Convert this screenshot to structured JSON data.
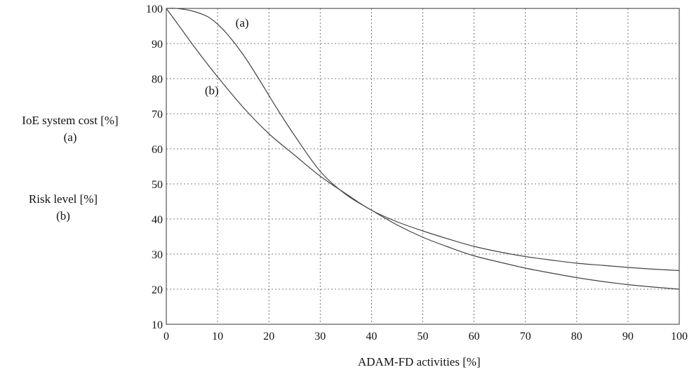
{
  "chart_data": {
    "type": "line",
    "title": "",
    "xlabel": "ADAM-FD  activities [%]",
    "ylabel_lines": [
      [
        "IoE  system cost [%]",
        "(a)"
      ],
      [
        "Risk  level [%]",
        "(b)"
      ]
    ],
    "xlim": [
      0,
      100
    ],
    "ylim": [
      10,
      100
    ],
    "xticks": [
      0,
      10,
      20,
      30,
      40,
      50,
      60,
      70,
      80,
      90,
      100
    ],
    "yticks": [
      10,
      20,
      30,
      40,
      50,
      60,
      70,
      80,
      90,
      100
    ],
    "grid": true,
    "series": [
      {
        "name": "(a)",
        "x": [
          0,
          2,
          5,
          8,
          10,
          12,
          15,
          18,
          20,
          22,
          25,
          30,
          35,
          40,
          45,
          50,
          55,
          60,
          65,
          70,
          75,
          80,
          85,
          90,
          95,
          100
        ],
        "y": [
          100,
          100,
          99.3,
          97.7,
          95.5,
          92.5,
          86.8,
          80,
          75.2,
          70.5,
          63.8,
          53.6,
          47,
          42.5,
          38.3,
          34.8,
          32,
          29.5,
          27.7,
          26,
          24.6,
          23.3,
          22.2,
          21.3,
          20.6,
          20
        ],
        "annotation": {
          "text": "(a)",
          "x": 13.5,
          "y": 94.8
        }
      },
      {
        "name": "(b)",
        "x": [
          0,
          3,
          6,
          10,
          15,
          20,
          25,
          30,
          35,
          40,
          45,
          50,
          55,
          60,
          65,
          70,
          75,
          80,
          85,
          90,
          95,
          100
        ],
        "y": [
          100,
          94,
          88,
          80.5,
          71.8,
          64.3,
          58.2,
          52.2,
          47.2,
          42.5,
          39.2,
          36.6,
          34.3,
          32.2,
          30.6,
          29.3,
          28.3,
          27.4,
          26.8,
          26.2,
          25.7,
          25.3
        ],
        "annotation": {
          "text": "(b)",
          "x": 7.5,
          "y": 75.5
        }
      }
    ]
  }
}
